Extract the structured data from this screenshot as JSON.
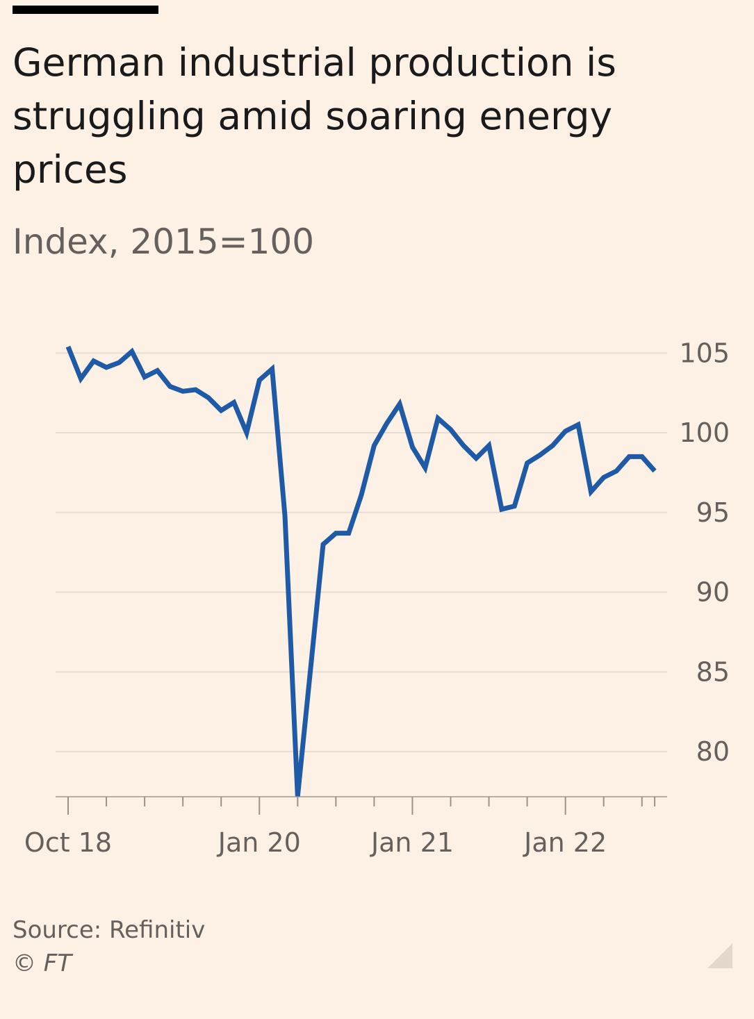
{
  "header": {
    "title": "German industrial production is struggling amid soaring energy prices",
    "subtitle": "Index, 2015=100"
  },
  "footer": {
    "source": "Source: Refinitiv",
    "copyright": "© FT"
  },
  "colors": {
    "background": "#fdf1e6",
    "line": "#1f5aa6",
    "grid": "#e8ddd3",
    "axis": "#66605c",
    "text": "#1a1a1a"
  },
  "chart_data": {
    "type": "line",
    "title": "German industrial production is struggling amid soaring energy prices",
    "subtitle": "Index, 2015=100",
    "xlabel": "",
    "ylabel": "",
    "ylim": [
      77,
      107
    ],
    "yticks": [
      80,
      85,
      90,
      95,
      100,
      105
    ],
    "y_axis_side": "right",
    "grid": true,
    "x_tick_labels": [
      {
        "date": "2018-10",
        "label": "Oct 18"
      },
      {
        "date": "2020-01",
        "label": "Jan 20"
      },
      {
        "date": "2021-01",
        "label": "Jan 21"
      },
      {
        "date": "2022-01",
        "label": "Jan 22"
      }
    ],
    "series": [
      {
        "x": [
          "2018-10",
          "2018-11",
          "2018-12",
          "2019-01",
          "2019-02",
          "2019-03",
          "2019-04",
          "2019-05",
          "2019-06",
          "2019-07",
          "2019-08",
          "2019-09",
          "2019-10",
          "2019-11",
          "2019-12",
          "2020-01",
          "2020-02",
          "2020-03",
          "2020-04",
          "2020-05",
          "2020-06",
          "2020-07",
          "2020-08",
          "2020-09",
          "2020-10",
          "2020-11",
          "2020-12",
          "2021-01",
          "2021-02",
          "2021-03",
          "2021-04",
          "2021-05",
          "2021-06",
          "2021-07",
          "2021-08",
          "2021-09",
          "2021-10",
          "2021-11",
          "2021-12",
          "2022-01",
          "2022-02",
          "2022-03",
          "2022-04",
          "2022-05",
          "2022-06",
          "2022-07",
          "2022-08"
        ],
        "values": [
          105.4,
          103.4,
          104.5,
          104.1,
          104.4,
          105.1,
          103.5,
          103.9,
          102.9,
          102.6,
          102.7,
          102.2,
          101.4,
          101.9,
          100.0,
          103.3,
          104.0,
          94.8,
          77.2,
          85.1,
          93.0,
          93.7,
          93.7,
          96.1,
          99.2,
          100.6,
          101.8,
          99.1,
          97.8,
          100.9,
          100.2,
          99.2,
          98.4,
          99.2,
          95.2,
          95.4,
          98.1,
          98.6,
          99.2,
          100.1,
          100.5,
          96.3,
          97.2,
          97.6,
          98.5,
          98.5,
          97.6
        ]
      }
    ]
  }
}
